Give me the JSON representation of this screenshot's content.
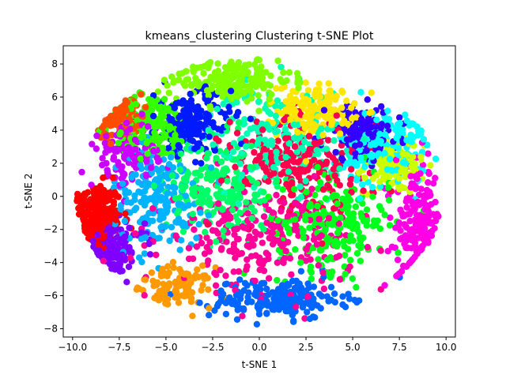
{
  "chart_data": {
    "type": "scatter",
    "title": "kmeans_clustering Clustering t-SNE Plot",
    "xlabel": "t-SNE 1",
    "ylabel": "t-SNE 2",
    "xlim": [
      -10.5,
      10.5
    ],
    "ylim": [
      -8.5,
      9.1
    ],
    "xticks": [
      -10.0,
      -7.5,
      -5.0,
      -2.5,
      0.0,
      2.5,
      5.0,
      7.5,
      10.0
    ],
    "xtick_labels": [
      "−10.0",
      "−7.5",
      "−5.0",
      "−2.5",
      "0.0",
      "2.5",
      "5.0",
      "7.5",
      "10.0"
    ],
    "yticks": [
      -8,
      -6,
      -4,
      -2,
      0,
      2,
      4,
      6,
      8
    ],
    "ytick_labels": [
      "−8",
      "−6",
      "−4",
      "−2",
      "0",
      "2",
      "4",
      "6",
      "8"
    ],
    "grid": false,
    "legend": "none",
    "colormap": "hsv",
    "n_clusters": 20,
    "cluster_colors": [
      "#ff0000",
      "#ff4d00",
      "#ff9900",
      "#ffe600",
      "#ccff00",
      "#80ff00",
      "#33ff00",
      "#00ff1a",
      "#00ff66",
      "#00ffb3",
      "#00ffff",
      "#00b3ff",
      "#0066ff",
      "#001aff",
      "#3300ff",
      "#8000ff",
      "#cc00ff",
      "#ff00e6",
      "#ff0099",
      "#ff004d"
    ],
    "clusters": [
      {
        "id": 0,
        "center": [
          -8.8,
          -1.2
        ],
        "spread": [
          0.7,
          1.0
        ],
        "count": 260
      },
      {
        "id": 1,
        "center": [
          -7.5,
          4.8
        ],
        "spread": [
          0.6,
          0.7
        ],
        "count": 120
      },
      {
        "id": 2,
        "center": [
          -4.5,
          -5.5
        ],
        "spread": [
          1.0,
          0.6
        ],
        "count": 110
      },
      {
        "id": 3,
        "center": [
          3.0,
          5.2
        ],
        "spread": [
          1.0,
          0.8
        ],
        "count": 160
      },
      {
        "id": 4,
        "center": [
          7.2,
          1.8
        ],
        "spread": [
          0.8,
          0.8
        ],
        "count": 120
      },
      {
        "id": 5,
        "center": [
          -1.5,
          7.0
        ],
        "spread": [
          1.6,
          0.7
        ],
        "count": 200
      },
      {
        "id": 6,
        "center": [
          -5.8,
          4.2
        ],
        "spread": [
          1.0,
          1.0
        ],
        "count": 180
      },
      {
        "id": 7,
        "center": [
          4.0,
          -1.5
        ],
        "spread": [
          1.5,
          1.5
        ],
        "count": 220
      },
      {
        "id": 8,
        "center": [
          -2.0,
          0.5
        ],
        "spread": [
          1.5,
          1.5
        ],
        "count": 220
      },
      {
        "id": 9,
        "center": [
          1.0,
          3.5
        ],
        "spread": [
          1.8,
          1.5
        ],
        "count": 200
      },
      {
        "id": 10,
        "center": [
          6.8,
          3.0
        ],
        "spread": [
          1.2,
          1.2
        ],
        "count": 180
      },
      {
        "id": 11,
        "center": [
          -5.5,
          0.0
        ],
        "spread": [
          1.2,
          1.5
        ],
        "count": 200
      },
      {
        "id": 12,
        "center": [
          1.0,
          -6.2
        ],
        "spread": [
          1.8,
          0.6
        ],
        "count": 200
      },
      {
        "id": 13,
        "center": [
          -3.5,
          4.5
        ],
        "spread": [
          1.0,
          1.0
        ],
        "count": 170
      },
      {
        "id": 14,
        "center": [
          5.5,
          3.8
        ],
        "spread": [
          1.0,
          0.8
        ],
        "count": 150
      },
      {
        "id": 15,
        "center": [
          -7.8,
          -3.0
        ],
        "spread": [
          0.8,
          0.7
        ],
        "count": 140
      },
      {
        "id": 16,
        "center": [
          -7.0,
          2.5
        ],
        "spread": [
          1.0,
          1.0
        ],
        "count": 140
      },
      {
        "id": 17,
        "center": [
          8.5,
          -1.5
        ],
        "spread": [
          0.6,
          1.6
        ],
        "count": 170
      },
      {
        "id": 18,
        "center": [
          0.0,
          -2.5
        ],
        "spread": [
          2.5,
          1.5
        ],
        "count": 260
      },
      {
        "id": 19,
        "center": [
          2.0,
          2.0
        ],
        "spread": [
          2.0,
          1.5
        ],
        "count": 220
      }
    ]
  }
}
